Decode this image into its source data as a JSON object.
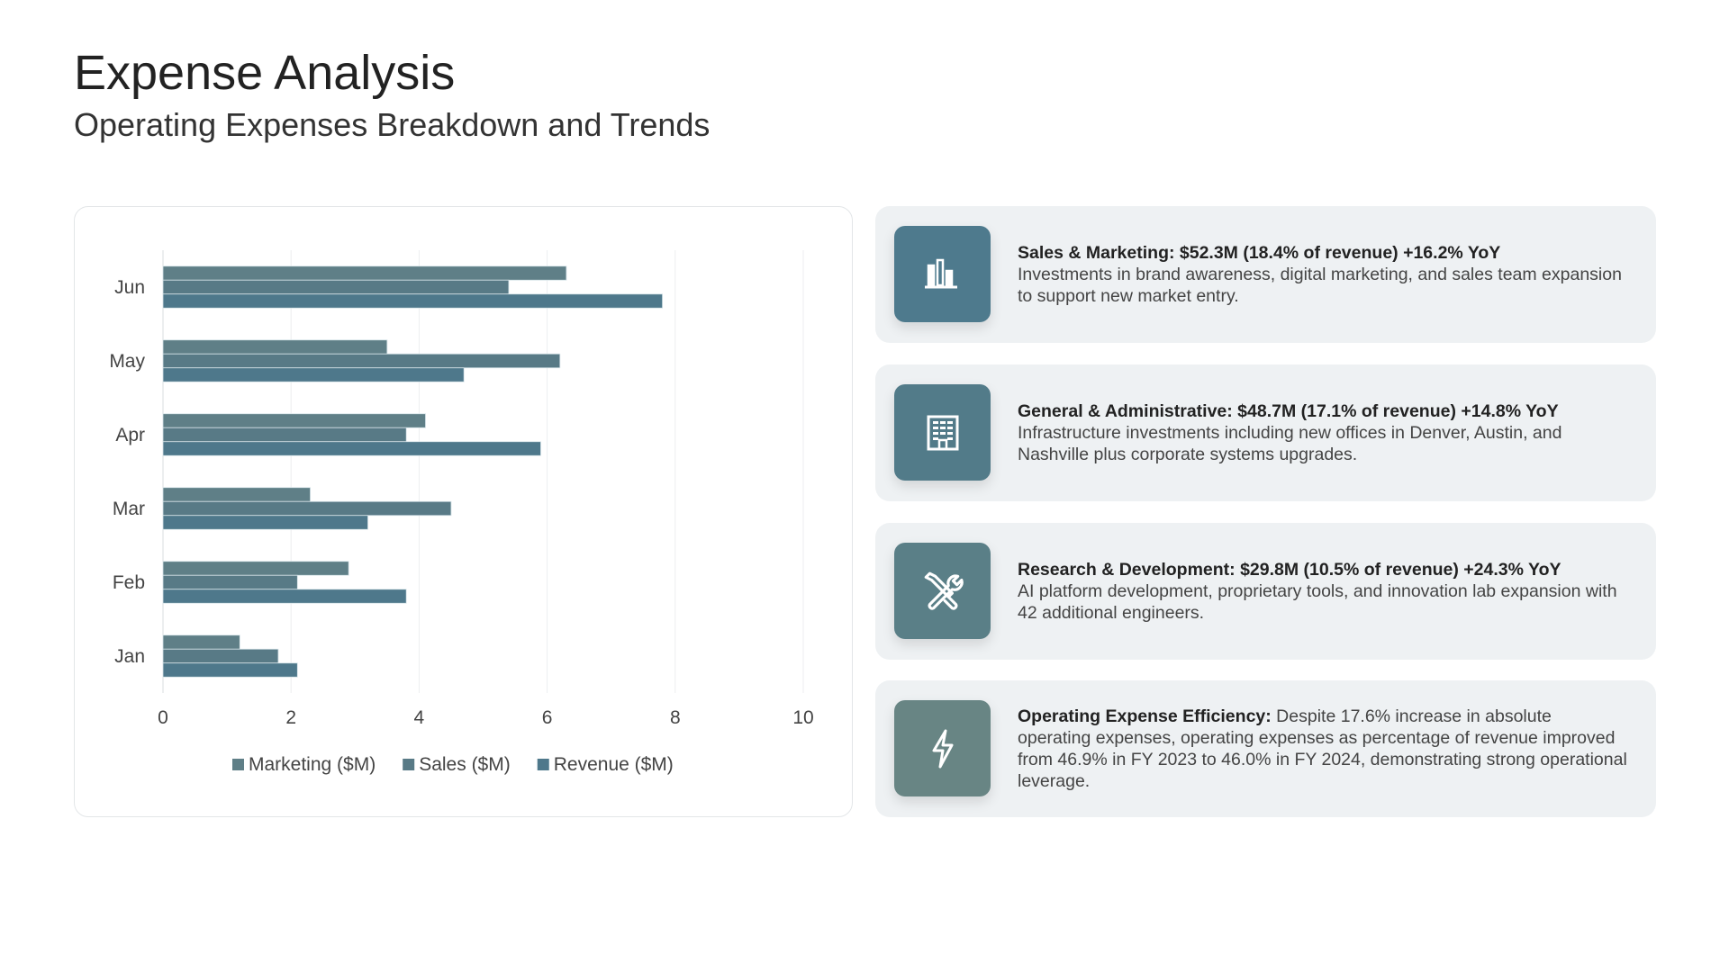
{
  "header": {
    "title": "Expense Analysis",
    "subtitle": "Operating Expenses Breakdown and Trends"
  },
  "chart_data": {
    "type": "bar",
    "orientation": "horizontal",
    "categories": [
      "Jun",
      "May",
      "Apr",
      "Mar",
      "Feb",
      "Jan"
    ],
    "series": [
      {
        "name": "Marketing ($M)",
        "color": "#5f7f87",
        "values": [
          6.3,
          3.5,
          4.1,
          2.3,
          2.9,
          1.2
        ]
      },
      {
        "name": "Sales ($M)",
        "color": "#587a86",
        "values": [
          5.4,
          6.2,
          3.8,
          4.5,
          2.1,
          1.8
        ]
      },
      {
        "name": "Revenue ($M)",
        "color": "#4e788b",
        "values": [
          7.8,
          4.7,
          5.9,
          3.2,
          3.8,
          2.1
        ]
      }
    ],
    "xlim": [
      0,
      10
    ],
    "xticks": [
      "0",
      "2",
      "4",
      "6",
      "8",
      "10"
    ],
    "grid": true,
    "legend": "bottom",
    "title": "",
    "xlabel": "",
    "ylabel": ""
  },
  "cards": [
    {
      "icon": "bar-chart-icon",
      "color": "#4e7a8d",
      "title": "Sales & Marketing: $52.3M (18.4% of revenue) +16.2% YoY",
      "body": "Investments in brand awareness, digital marketing, and sales team expansion to support new market entry."
    },
    {
      "icon": "building-icon",
      "color": "#527b89",
      "title": "General & Administrative: $48.7M (17.1% of revenue) +14.8% YoY",
      "body": "Infrastructure investments including new offices in Denver, Austin, and Nashville plus corporate systems upgrades."
    },
    {
      "icon": "tools-icon",
      "color": "#5a7f87",
      "title": "Research & Development: $29.8M (10.5% of revenue) +24.3% YoY",
      "body": "AI platform development, proprietary tools, and innovation lab expansion with 42 additional engineers."
    },
    {
      "icon": "lightning-icon",
      "color": "#688584",
      "title": "Operating Expense Efficiency:",
      "body": " Despite 17.6% increase in absolute operating expenses, operating expenses as percentage of revenue improved from 46.9% in FY 2023 to 46.0% in FY 2024, demonstrating strong operational leverage."
    }
  ]
}
